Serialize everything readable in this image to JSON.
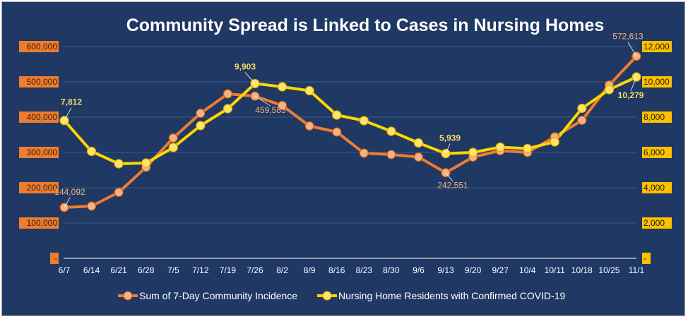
{
  "chart_data": {
    "type": "line",
    "title": "Community Spread is Linked to Cases in Nursing Homes",
    "categories": [
      "6/7",
      "6/14",
      "6/21",
      "6/28",
      "7/5",
      "7/12",
      "7/19",
      "7/26",
      "8/2",
      "8/9",
      "8/16",
      "8/23",
      "8/30",
      "9/6",
      "9/13",
      "9/20",
      "9/27",
      "10/4",
      "10/11",
      "10/18",
      "10/25",
      "11/1"
    ],
    "y_left": {
      "ylim": [
        0,
        600000
      ],
      "ticks": [
        "-",
        "100,000",
        "200,000",
        "300,000",
        "400,000",
        "500,000",
        "600,000"
      ]
    },
    "y_right": {
      "ylim": [
        0,
        12000
      ],
      "ticks": [
        "-",
        "2,000",
        "4,000",
        "6,000",
        "8,000",
        "10,000",
        "12,000"
      ]
    },
    "series": [
      {
        "name": "Sum of 7-Day Community Incidence",
        "axis": "left",
        "color": "#ed7d31",
        "values": [
          144092,
          148000,
          187000,
          258000,
          341000,
          411000,
          466000,
          459583,
          433000,
          375000,
          358000,
          298000,
          294000,
          287000,
          242551,
          287000,
          305000,
          300000,
          344000,
          391000,
          491000,
          572613
        ]
      },
      {
        "name": "Nursing Home Residents with Confirmed COVID-19",
        "axis": "right",
        "color": "#ffd700",
        "values": [
          7812,
          6060,
          5360,
          5400,
          6280,
          7520,
          8480,
          9903,
          9720,
          9500,
          8120,
          7800,
          7200,
          6540,
          5939,
          6000,
          6300,
          6220,
          6600,
          8500,
          9560,
          10279
        ]
      }
    ],
    "data_labels": [
      {
        "series": 0,
        "index": 0,
        "text": "144,092"
      },
      {
        "series": 0,
        "index": 7,
        "text": "459,583"
      },
      {
        "series": 0,
        "index": 14,
        "text": "242,551"
      },
      {
        "series": 0,
        "index": 21,
        "text": "572,613"
      },
      {
        "series": 1,
        "index": 0,
        "text": "7,812"
      },
      {
        "series": 1,
        "index": 7,
        "text": "9,903"
      },
      {
        "series": 1,
        "index": 14,
        "text": "5,939"
      },
      {
        "series": 1,
        "index": 21,
        "text": "10,279"
      }
    ],
    "legend_position": "bottom",
    "grid": true,
    "background": "#1f3864"
  }
}
